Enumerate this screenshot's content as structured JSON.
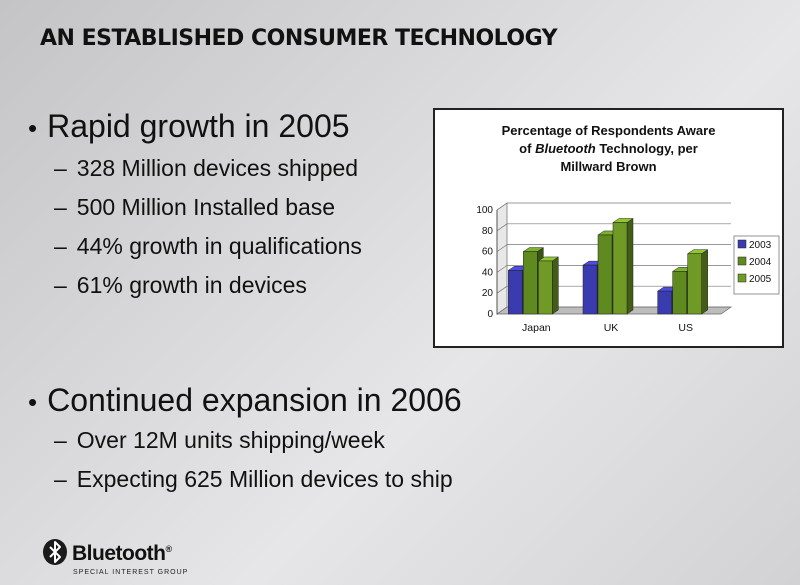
{
  "slide_title": "AN ESTABLISHED CONSUMER TECHNOLOGY",
  "bullets": [
    {
      "text": "Rapid growth in 2005",
      "subs": [
        "328 Million devices shipped",
        "500 Million Installed base",
        "44% growth in qualifications",
        "61% growth in devices"
      ]
    },
    {
      "text": "Continued expansion in 2006",
      "subs": [
        "Over 12M units shipping/week",
        "Expecting 625 Million devices to ship"
      ]
    }
  ],
  "bullet_glyph": "•",
  "dash_glyph": "–",
  "chart_data": {
    "type": "bar",
    "title_line1": "Percentage of Respondents Aware",
    "title_line2_pre": "of ",
    "title_line2_em": "Bluetooth",
    "title_line2_post": " Technology, per",
    "title_line3": "Millward Brown",
    "categories": [
      "Japan",
      "UK",
      "US"
    ],
    "series": [
      {
        "name": "2003",
        "values": [
          42,
          47,
          22
        ],
        "color": "#3b3bb0"
      },
      {
        "name": "2004",
        "values": [
          60,
          76,
          41
        ],
        "color": "#5f8a20"
      },
      {
        "name": "2005",
        "values": [
          51,
          88,
          58
        ],
        "color": "#6f9a25"
      }
    ],
    "ylim": [
      0,
      100
    ],
    "yticks": [
      0,
      20,
      40,
      60,
      80,
      100
    ],
    "legend_position": "right"
  },
  "logo": {
    "word": "Bluetooth",
    "mark": "®",
    "subtitle": "SPECIAL INTEREST GROUP",
    "icon": "bluetooth-rune-icon"
  }
}
